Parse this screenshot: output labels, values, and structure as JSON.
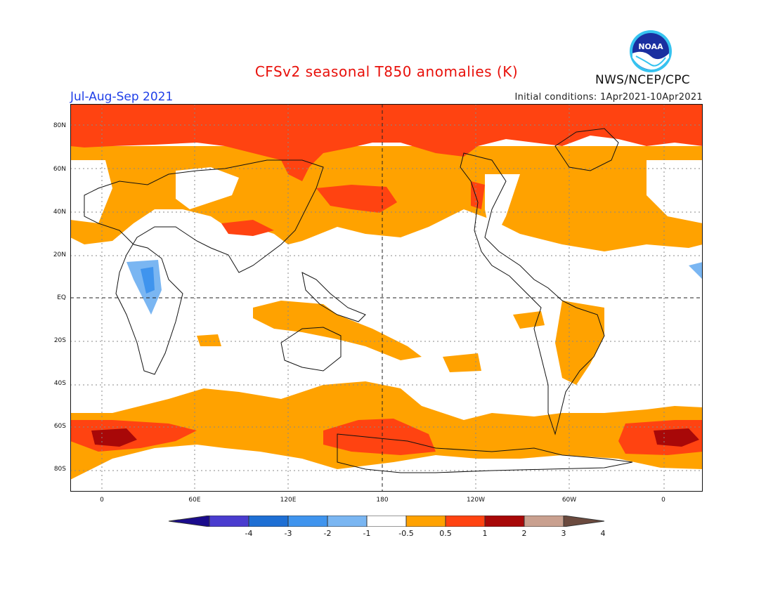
{
  "header": {
    "title": "CFSv2 seasonal T850 anomalies (K)",
    "season": "Jul-Aug-Sep 2021",
    "initial_conditions": "Initial conditions: 1Apr2021-10Apr2021",
    "agency": "NWS/NCEP/CPC",
    "logo_text": "NOAA"
  },
  "map": {
    "latitude_labels": [
      "80N",
      "60N",
      "40N",
      "20N",
      "EQ",
      "20S",
      "40S",
      "60S",
      "80S"
    ],
    "longitude_labels": [
      "0",
      "60E",
      "120E",
      "180",
      "120W",
      "60W",
      "0"
    ]
  },
  "colorbar": {
    "labels": [
      "-4",
      "-3",
      "-2",
      "-1",
      "-0.5",
      "0.5",
      "1",
      "2",
      "3",
      "4"
    ],
    "colors": [
      "#1a0b8c",
      "#4a3ccf",
      "#1e6fd4",
      "#3f94ee",
      "#7ab6f2",
      "#ffffff",
      "#ffa200",
      "#ff4311",
      "#a80808",
      "#c9a08f",
      "#6b4a3e"
    ]
  },
  "legend_colors": {
    "white": "#ffffff",
    "orange": "#ffa200",
    "red_orange": "#ff4311",
    "dark_red": "#a80808",
    "light_blue": "#7ab6f2",
    "blue": "#3f94ee"
  }
}
